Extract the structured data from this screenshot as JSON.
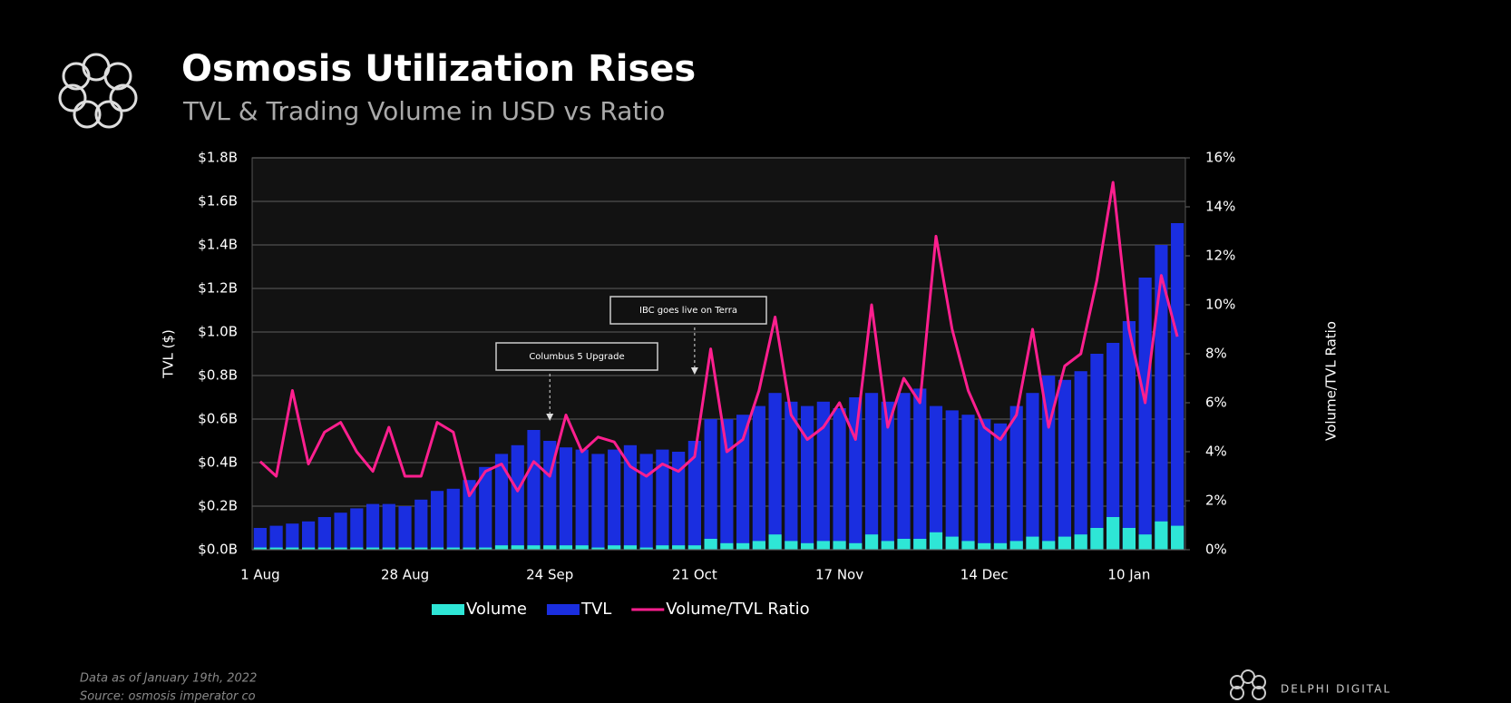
{
  "chart_data": {
    "type": "bar_line",
    "title": "Osmosis Utilization Rises",
    "subtitle": "TVL & Trading Volume in USD vs Ratio",
    "y_label": "TVL ($)",
    "y2_label": "Volume/TVL Ratio",
    "categories": [
      "1 Aug",
      null,
      null,
      null,
      null,
      null,
      null,
      null,
      null,
      "28 Aug",
      null,
      null,
      null,
      null,
      null,
      null,
      null,
      null,
      "24 Sep",
      null,
      null,
      null,
      null,
      null,
      null,
      null,
      null,
      "21 Oct",
      null,
      null,
      null,
      null,
      null,
      null,
      null,
      null,
      "17 Nov",
      null,
      null,
      null,
      null,
      null,
      null,
      null,
      null,
      "14 Dec",
      null,
      null,
      null,
      null,
      null,
      null,
      null,
      null,
      "10 Jan",
      null,
      null,
      null
    ],
    "series": [
      {
        "name": "Volume",
        "kind": "bar",
        "color": "#2ee6d6",
        "values": [
          0.01,
          0.01,
          0.01,
          0.01,
          0.01,
          0.01,
          0.01,
          0.01,
          0.01,
          0.01,
          0.01,
          0.01,
          0.01,
          0.01,
          0.01,
          0.02,
          0.02,
          0.02,
          0.02,
          0.02,
          0.02,
          0.01,
          0.02,
          0.02,
          0.01,
          0.02,
          0.02,
          0.02,
          0.05,
          0.03,
          0.03,
          0.04,
          0.07,
          0.04,
          0.03,
          0.04,
          0.04,
          0.03,
          0.07,
          0.04,
          0.05,
          0.05,
          0.08,
          0.06,
          0.04,
          0.03,
          0.03,
          0.04,
          0.06,
          0.04,
          0.06,
          0.07,
          0.1,
          0.15,
          0.1,
          0.07,
          0.13,
          0.11
        ]
      },
      {
        "name": "TVL",
        "kind": "bar",
        "color": "#1a2ee0",
        "values": [
          0.1,
          0.11,
          0.12,
          0.13,
          0.15,
          0.17,
          0.19,
          0.21,
          0.21,
          0.2,
          0.23,
          0.27,
          0.28,
          0.32,
          0.38,
          0.44,
          0.48,
          0.55,
          0.5,
          0.47,
          0.46,
          0.44,
          0.46,
          0.48,
          0.44,
          0.46,
          0.45,
          0.5,
          0.6,
          0.6,
          0.62,
          0.66,
          0.72,
          0.68,
          0.66,
          0.68,
          0.65,
          0.7,
          0.72,
          0.68,
          0.72,
          0.74,
          0.66,
          0.64,
          0.62,
          0.6,
          0.58,
          0.66,
          0.72,
          0.8,
          0.78,
          0.82,
          0.9,
          0.95,
          1.05,
          1.25,
          1.4,
          1.5
        ]
      },
      {
        "name": "Volume/TVL Ratio",
        "kind": "line",
        "axis": "y2",
        "color": "#ff1f8f",
        "values": [
          3.6,
          3.0,
          6.5,
          3.5,
          4.8,
          5.2,
          4.0,
          3.2,
          5.0,
          3.0,
          3.0,
          5.2,
          4.8,
          2.2,
          3.2,
          3.5,
          2.4,
          3.6,
          3.0,
          5.5,
          4.0,
          4.6,
          4.4,
          3.4,
          3.0,
          3.5,
          3.2,
          3.8,
          8.2,
          4.0,
          4.5,
          6.5,
          9.5,
          5.5,
          4.5,
          5.0,
          6.0,
          4.5,
          10.0,
          5.0,
          7.0,
          6.0,
          12.8,
          9.0,
          6.5,
          5.0,
          4.5,
          5.5,
          9.0,
          5.0,
          7.5,
          8.0,
          11.0,
          15.0,
          9.0,
          6.0,
          11.2,
          8.7
        ]
      }
    ],
    "ylim": [
      0,
      1.8
    ],
    "yticks": [
      {
        "value": 0,
        "label": "$0.0B"
      },
      {
        "value": 0.2,
        "label": "$0.2B"
      },
      {
        "value": 0.4,
        "label": "$0.4B"
      },
      {
        "value": 0.6,
        "label": "$0.6B"
      },
      {
        "value": 0.8,
        "label": "$0.8B"
      },
      {
        "value": 1.0,
        "label": "$1.0B"
      },
      {
        "value": 1.2,
        "label": "$1.2B"
      },
      {
        "value": 1.4,
        "label": "$1.4B"
      },
      {
        "value": 1.6,
        "label": "$1.6B"
      },
      {
        "value": 1.8,
        "label": "$1.8B"
      }
    ],
    "y2lim": [
      0,
      16
    ],
    "y2ticks": [
      {
        "value": 0,
        "label": "0%"
      },
      {
        "value": 2,
        "label": "2%"
      },
      {
        "value": 4,
        "label": "4%"
      },
      {
        "value": 6,
        "label": "6%"
      },
      {
        "value": 8,
        "label": "8%"
      },
      {
        "value": 10,
        "label": "10%"
      },
      {
        "value": 12,
        "label": "12%"
      },
      {
        "value": 14,
        "label": "14%"
      },
      {
        "value": 16,
        "label": "16%"
      }
    ],
    "grid": true,
    "legend": "bottom",
    "annotations": [
      "Columbus 5 Upgrade",
      "IBC goes live on Terra"
    ],
    "footnote": [
      "Data as of January 19th, 2022",
      "Source: osmosis imperator co"
    ],
    "brand": "DELPHI DIGITAL"
  }
}
